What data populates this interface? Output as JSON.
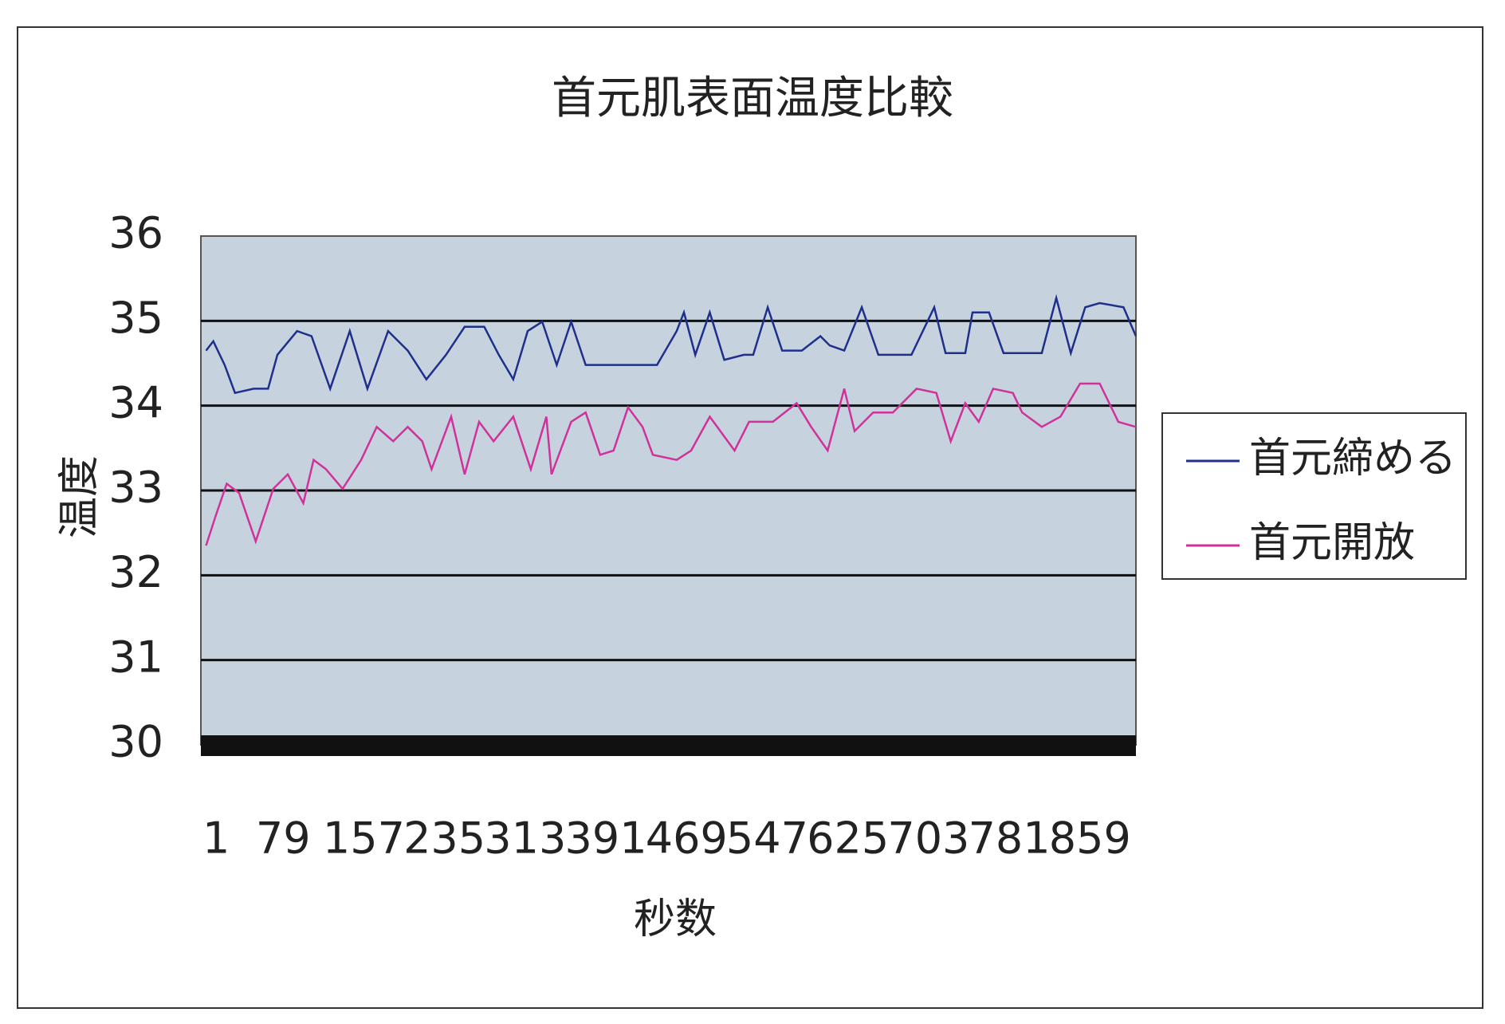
{
  "chart_data": {
    "type": "line",
    "title": "首元肌表面温度比較",
    "x_label": "秒数",
    "y_label": "温度",
    "xlim": [
      1,
      905
    ],
    "xticks": [
      1,
      79,
      157,
      235,
      313,
      391,
      469,
      547,
      625,
      703,
      781,
      859
    ],
    "ylim": [
      30,
      36
    ],
    "yticks": [
      30,
      31,
      32,
      33,
      34,
      35,
      36
    ],
    "grid": true,
    "legend": "right",
    "series": [
      {
        "name": "首元締める",
        "color": "#1f2f8a",
        "x": [
          6,
          13,
          24,
          34,
          52,
          66,
          75,
          94,
          108,
          126,
          145,
          162,
          182,
          201,
          219,
          238,
          256,
          275,
          289,
          303,
          317,
          331,
          345,
          359,
          373,
          391,
          442,
          461,
          468,
          479,
          493,
          507,
          526,
          535,
          549,
          563,
          582,
          600,
          609,
          623,
          640,
          656,
          688,
          710,
          721,
          740,
          747,
          763,
          777,
          814,
          828,
          842,
          856,
          870,
          893,
          905
        ],
        "values": [
          34.65,
          34.76,
          34.48,
          34.15,
          34.2,
          34.2,
          34.6,
          34.88,
          34.82,
          34.2,
          34.88,
          34.2,
          34.88,
          34.65,
          34.31,
          34.6,
          34.93,
          34.93,
          34.6,
          34.31,
          34.88,
          34.99,
          34.48,
          34.99,
          34.48,
          34.48,
          34.48,
          34.88,
          35.1,
          34.6,
          35.1,
          34.54,
          34.6,
          34.6,
          35.16,
          34.65,
          34.65,
          34.82,
          34.71,
          34.65,
          35.16,
          34.6,
          34.6,
          35.16,
          34.62,
          34.62,
          35.1,
          35.1,
          34.62,
          34.62,
          35.27,
          34.62,
          35.16,
          35.21,
          35.16,
          34.82
        ]
      },
      {
        "name": "首元開放",
        "color": "#d0329a",
        "x": [
          6,
          15,
          26,
          38,
          54,
          71,
          85,
          100,
          110,
          122,
          138,
          156,
          171,
          187,
          201,
          215,
          224,
          243,
          256,
          270,
          284,
          303,
          320,
          335,
          340,
          359,
          373,
          387,
          400,
          414,
          428,
          438,
          461,
          475,
          493,
          517,
          531,
          554,
          577,
          591,
          607,
          623,
          633,
          651,
          670,
          693,
          712,
          726,
          740,
          753,
          767,
          786,
          795,
          814,
          832,
          851,
          870,
          888,
          905
        ],
        "values": [
          32.35,
          32.69,
          33.08,
          32.97,
          32.4,
          33.02,
          33.19,
          32.85,
          33.36,
          33.25,
          33.02,
          33.36,
          33.75,
          33.58,
          33.75,
          33.58,
          33.25,
          33.87,
          33.19,
          33.81,
          33.58,
          33.87,
          33.25,
          33.87,
          33.19,
          33.81,
          33.92,
          33.42,
          33.47,
          33.98,
          33.75,
          33.42,
          33.36,
          33.47,
          33.87,
          33.47,
          33.81,
          33.81,
          34.03,
          33.75,
          33.47,
          34.2,
          33.7,
          33.92,
          33.92,
          34.2,
          34.15,
          33.58,
          34.03,
          33.81,
          34.2,
          34.15,
          33.92,
          33.75,
          33.87,
          34.26,
          34.26,
          33.81,
          33.75
        ]
      }
    ]
  }
}
